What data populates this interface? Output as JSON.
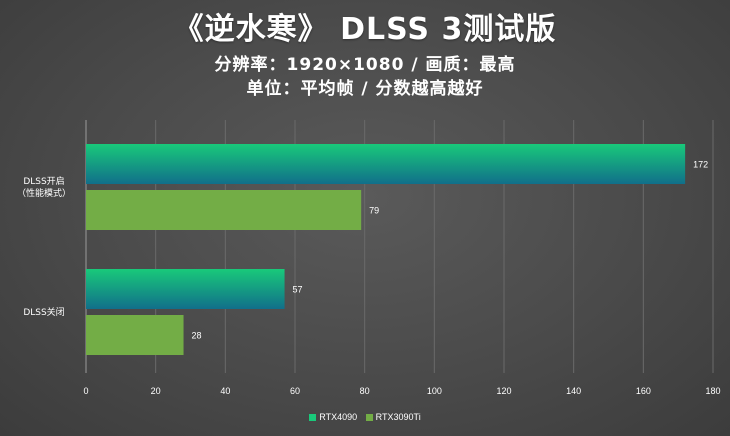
{
  "title": "《逆水寒》 DLSS 3测试版",
  "subtitle_line1": "分辨率：1920×1080 / 画质：最高",
  "subtitle_line2": "单位：平均帧 / 分数越高越好",
  "colors": {
    "rtx4090_top": "#19c97a",
    "rtx4090_bottom": "#116f8a",
    "rtx3090ti": "#73ad46"
  },
  "chart_data": {
    "type": "bar",
    "orientation": "horizontal",
    "categories": [
      "DLSS开启\n（性能模式）",
      "DLSS关闭"
    ],
    "series": [
      {
        "name": "RTX4090",
        "values": [
          172,
          57
        ]
      },
      {
        "name": "RTX3090Ti",
        "values": [
          79,
          28
        ]
      }
    ],
    "xlim": [
      0,
      180
    ],
    "xticks": [
      0,
      20,
      40,
      60,
      80,
      100,
      120,
      140,
      160,
      180
    ],
    "grid": true,
    "legend_position": "bottom"
  }
}
